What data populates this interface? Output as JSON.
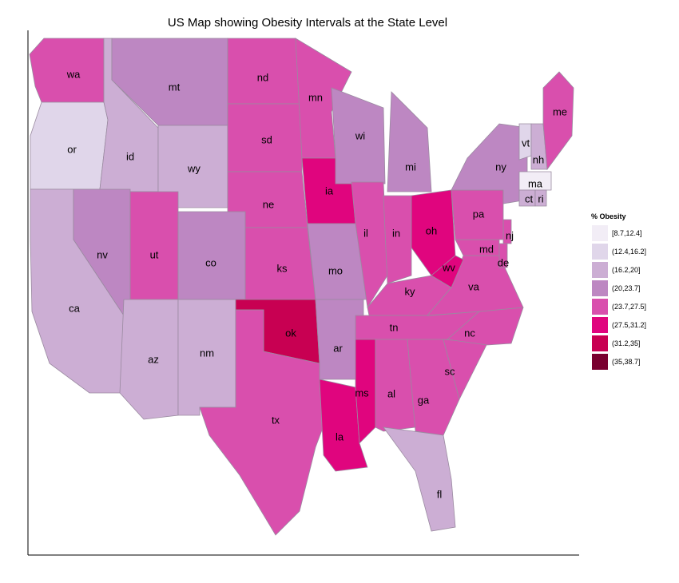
{
  "title": "US Map showing Obesity Intervals at the State Level",
  "legend": {
    "title": "% Obesity",
    "items": [
      {
        "label": "[8.7,12.4]",
        "color": "#f2edf6"
      },
      {
        "label": "(12.4,16.2]",
        "color": "#e0d6ea"
      },
      {
        "label": "(16.2,20]",
        "color": "#ccaed4"
      },
      {
        "label": "(20,23.7]",
        "color": "#bd87c2"
      },
      {
        "label": "(23.7,27.5]",
        "color": "#d94fad"
      },
      {
        "label": "(27.5,31.2]",
        "color": "#e0057e"
      },
      {
        "label": "(31.2,35]",
        "color": "#c80052"
      },
      {
        "label": "(35,38.7]",
        "color": "#7a0030"
      }
    ]
  },
  "states": [
    {
      "abbr": "wa",
      "bin": 4
    },
    {
      "abbr": "or",
      "bin": 1
    },
    {
      "abbr": "ca",
      "bin": 2
    },
    {
      "abbr": "id",
      "bin": 2
    },
    {
      "abbr": "nv",
      "bin": 3
    },
    {
      "abbr": "mt",
      "bin": 3
    },
    {
      "abbr": "wy",
      "bin": 2
    },
    {
      "abbr": "ut",
      "bin": 4
    },
    {
      "abbr": "az",
      "bin": 2
    },
    {
      "abbr": "co",
      "bin": 3
    },
    {
      "abbr": "nm",
      "bin": 2
    },
    {
      "abbr": "nd",
      "bin": 4
    },
    {
      "abbr": "sd",
      "bin": 4
    },
    {
      "abbr": "ne",
      "bin": 4
    },
    {
      "abbr": "ks",
      "bin": 4
    },
    {
      "abbr": "ok",
      "bin": 6
    },
    {
      "abbr": "tx",
      "bin": 4
    },
    {
      "abbr": "mn",
      "bin": 4
    },
    {
      "abbr": "ia",
      "bin": 5
    },
    {
      "abbr": "mo",
      "bin": 3
    },
    {
      "abbr": "ar",
      "bin": 3
    },
    {
      "abbr": "la",
      "bin": 5
    },
    {
      "abbr": "wi",
      "bin": 3
    },
    {
      "abbr": "il",
      "bin": 4
    },
    {
      "abbr": "mi",
      "bin": 3
    },
    {
      "abbr": "in",
      "bin": 4
    },
    {
      "abbr": "oh",
      "bin": 5
    },
    {
      "abbr": "ky",
      "bin": 4
    },
    {
      "abbr": "tn",
      "bin": 4
    },
    {
      "abbr": "ms",
      "bin": 5
    },
    {
      "abbr": "al",
      "bin": 4
    },
    {
      "abbr": "ga",
      "bin": 4
    },
    {
      "abbr": "fl",
      "bin": 2
    },
    {
      "abbr": "sc",
      "bin": 4
    },
    {
      "abbr": "nc",
      "bin": 4
    },
    {
      "abbr": "va",
      "bin": 4
    },
    {
      "abbr": "wv",
      "bin": 5
    },
    {
      "abbr": "md",
      "bin": 4
    },
    {
      "abbr": "de",
      "bin": 4
    },
    {
      "abbr": "nj",
      "bin": 4
    },
    {
      "abbr": "pa",
      "bin": 4
    },
    {
      "abbr": "ny",
      "bin": 3
    },
    {
      "abbr": "vt",
      "bin": 1
    },
    {
      "abbr": "nh",
      "bin": 2
    },
    {
      "abbr": "ma",
      "bin": 0
    },
    {
      "abbr": "ct",
      "bin": 2
    },
    {
      "abbr": "ri",
      "bin": 2
    },
    {
      "abbr": "me",
      "bin": 4
    }
  ]
}
